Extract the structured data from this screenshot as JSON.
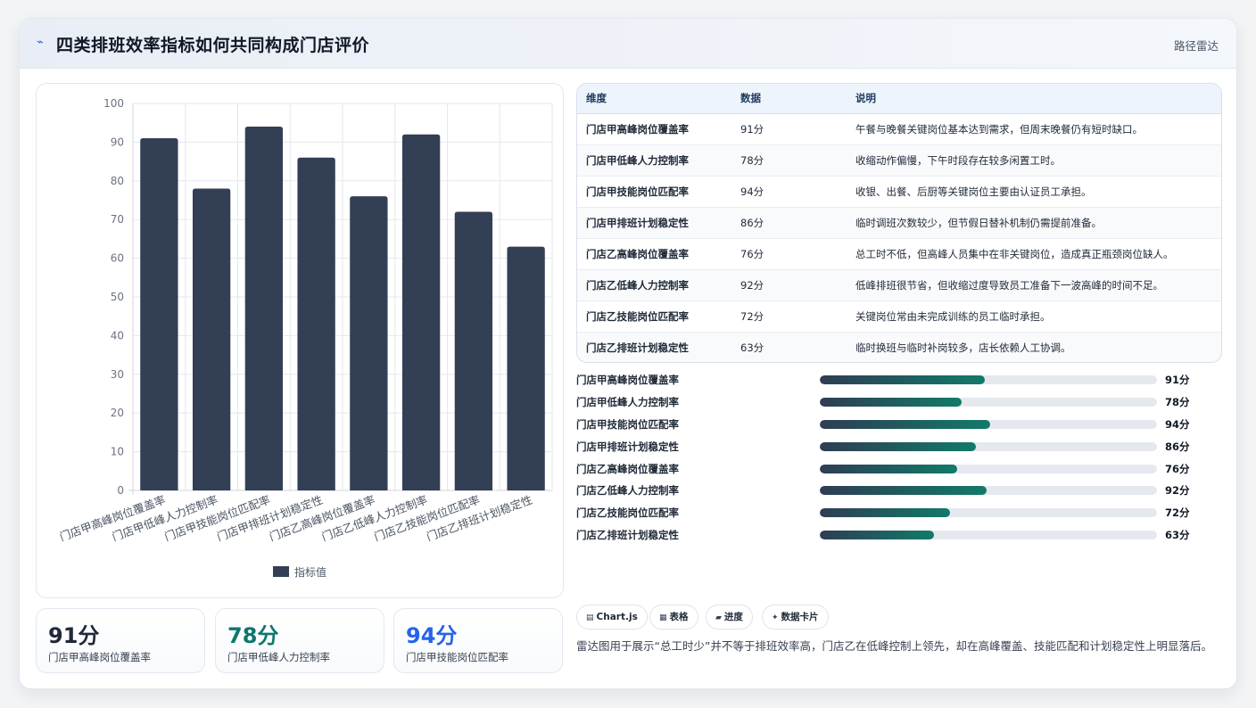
{
  "header": {
    "title": "四类排班效率指标如何共同构成门店评价",
    "tag": "路径雷达"
  },
  "chart_data": {
    "type": "bar",
    "categories": [
      "门店甲高峰岗位覆盖率",
      "门店甲低峰人力控制率",
      "门店甲技能岗位匹配率",
      "门店甲排班计划稳定性",
      "门店乙高峰岗位覆盖率",
      "门店乙低峰人力控制率",
      "门店乙技能岗位匹配率",
      "门店乙排班计划稳定性"
    ],
    "series": [
      {
        "name": "指标值",
        "values": [
          91,
          78,
          94,
          86,
          76,
          92,
          72,
          63
        ],
        "color": "#323f55"
      }
    ],
    "yticks": [
      "0",
      "10",
      "20",
      "30",
      "40",
      "50",
      "60",
      "70",
      "80",
      "90",
      "100"
    ],
    "ylim": [
      0,
      100
    ],
    "grid": true,
    "legend": "bottom"
  },
  "kpis": [
    {
      "value": "91分",
      "label": "门店甲高峰岗位覆盖率",
      "color": "#1f2937"
    },
    {
      "value": "78分",
      "label": "门店甲低峰人力控制率",
      "color": "#0f766e"
    },
    {
      "value": "94分",
      "label": "门店甲技能岗位匹配率",
      "color": "#2563eb"
    }
  ],
  "table": {
    "headers": [
      "维度",
      "数据",
      "说明"
    ],
    "rows": [
      [
        "门店甲高峰岗位覆盖率",
        "91分",
        "午餐与晚餐关键岗位基本达到需求，但周末晚餐仍有短时缺口。"
      ],
      [
        "门店甲低峰人力控制率",
        "78分",
        "收缩动作偏慢，下午时段存在较多闲置工时。"
      ],
      [
        "门店甲技能岗位匹配率",
        "94分",
        "收银、出餐、后厨等关键岗位主要由认证员工承担。"
      ],
      [
        "门店甲排班计划稳定性",
        "86分",
        "临时调班次数较少，但节假日替补机制仍需提前准备。"
      ],
      [
        "门店乙高峰岗位覆盖率",
        "76分",
        "总工时不低，但高峰人员集中在非关键岗位，造成真正瓶颈岗位缺人。"
      ],
      [
        "门店乙低峰人力控制率",
        "92分",
        "低峰排班很节省，但收缩过度导致员工准备下一波高峰的时间不足。"
      ],
      [
        "门店乙技能岗位匹配率",
        "72分",
        "关键岗位常由未完成训练的员工临时承担。"
      ],
      [
        "门店乙排班计划稳定性",
        "63分",
        "临时换班与临时补岗较多，店长依赖人工协调。"
      ]
    ]
  },
  "progress": [
    {
      "label": "门店甲高峰岗位覆盖率",
      "value": 91,
      "text": "91分"
    },
    {
      "label": "门店甲低峰人力控制率",
      "value": 78,
      "text": "78分"
    },
    {
      "label": "门店甲技能岗位匹配率",
      "value": 94,
      "text": "94分"
    },
    {
      "label": "门店甲排班计划稳定性",
      "value": 86,
      "text": "86分"
    },
    {
      "label": "门店乙高峰岗位覆盖率",
      "value": 76,
      "text": "76分"
    },
    {
      "label": "门店乙低峰人力控制率",
      "value": 92,
      "text": "92分"
    },
    {
      "label": "门店乙技能岗位匹配率",
      "value": 72,
      "text": "72分"
    },
    {
      "label": "门店乙排班计划稳定性",
      "value": 63,
      "text": "63分"
    }
  ],
  "chips": [
    {
      "icon": "bar-chart-icon",
      "label": "Chart.js"
    },
    {
      "icon": "table-icon",
      "label": "表格"
    },
    {
      "icon": "progress-icon",
      "label": "进度"
    },
    {
      "icon": "sparkle-icon",
      "label": "数据卡片"
    }
  ],
  "note": "雷达图用于展示“总工时少”并不等于排班效率高，门店乙在低峰控制上领先，却在高峰覆盖、技能匹配和计划稳定性上明显落后。"
}
